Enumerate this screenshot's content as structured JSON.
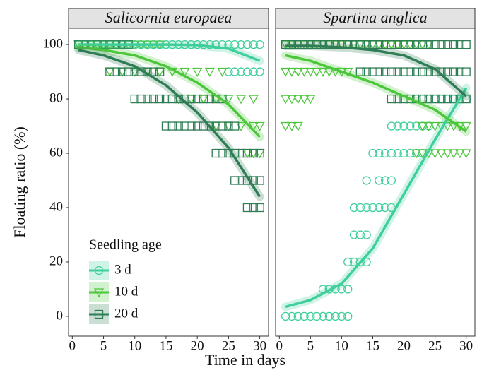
{
  "chart_data": {
    "type": "scatter",
    "x_label": "Time in days",
    "y_label": "Floating ratio (%)",
    "legend_title": "Seedling age",
    "legend": "bottom-left",
    "xlim": [
      -0.6,
      31.4
    ],
    "ylim": [
      -7.3,
      106
    ],
    "xticks": [
      0,
      5,
      10,
      15,
      20,
      25,
      30
    ],
    "yticks": [
      0,
      20,
      40,
      60,
      80,
      100
    ],
    "groups": [
      {
        "name": "3 d",
        "color": "#3fcf9b",
        "marker": "circle"
      },
      {
        "name": "10 d",
        "color": "#4cc63a",
        "marker": "triangle-down"
      },
      {
        "name": "20 d",
        "color": "#2e7d55",
        "marker": "square"
      }
    ],
    "fit_x": [
      1,
      5,
      10,
      15,
      20,
      25,
      30
    ],
    "facets": [
      {
        "title": "Salicornia europaea",
        "series": [
          {
            "x": [
              1,
              2,
              3,
              4,
              5,
              6,
              7,
              8,
              9,
              10,
              11,
              12,
              13,
              14,
              15,
              16,
              17,
              18,
              19,
              20,
              21,
              22,
              23,
              24,
              25,
              26,
              27,
              28,
              29,
              30,
              25,
              26,
              27,
              28,
              29,
              30
            ],
            "values": [
              100,
              100,
              100,
              100,
              100,
              100,
              100,
              100,
              100,
              100,
              100,
              100,
              100,
              100,
              100,
              100,
              100,
              100,
              100,
              100,
              100,
              100,
              100,
              100,
              100,
              100,
              100,
              100,
              100,
              100,
              90,
              90,
              90,
              90,
              90,
              90
            ],
            "fit": [
              100,
              100,
              100,
              100,
              99.8,
              98.5,
              94
            ]
          },
          {
            "x": [
              1,
              2,
              3,
              4,
              5,
              6,
              7,
              8,
              9,
              10,
              11,
              12,
              13,
              14,
              6,
              8,
              10,
              12,
              14,
              16,
              18,
              20,
              22,
              24,
              17,
              19,
              21,
              23,
              25,
              27,
              29,
              23,
              25,
              27,
              29,
              30,
              28,
              29,
              30
            ],
            "values": [
              100,
              100,
              100,
              100,
              100,
              100,
              100,
              100,
              100,
              100,
              100,
              100,
              100,
              100,
              90,
              90,
              90,
              90,
              90,
              90,
              90,
              90,
              90,
              90,
              80,
              80,
              80,
              80,
              80,
              80,
              80,
              70,
              70,
              70,
              70,
              70,
              60,
              60,
              60
            ],
            "fit": [
              99,
              98,
              96,
              92,
              86,
              78,
              66
            ]
          },
          {
            "x": [
              1,
              2,
              3,
              4,
              5,
              6,
              7,
              8,
              9,
              6,
              7,
              8,
              9,
              10,
              11,
              12,
              13,
              14,
              10,
              11,
              12,
              13,
              14,
              15,
              16,
              17,
              18,
              19,
              20,
              21,
              22,
              23,
              24,
              15,
              16,
              17,
              18,
              19,
              20,
              21,
              22,
              23,
              24,
              25,
              26,
              23,
              24,
              25,
              26,
              27,
              28,
              29,
              30,
              26,
              27,
              28,
              29,
              30,
              28,
              29,
              30
            ],
            "values": [
              100,
              100,
              100,
              100,
              100,
              100,
              100,
              100,
              100,
              90,
              90,
              90,
              90,
              90,
              90,
              90,
              90,
              90,
              80,
              80,
              80,
              80,
              80,
              80,
              80,
              80,
              80,
              80,
              80,
              80,
              80,
              80,
              80,
              70,
              70,
              70,
              70,
              70,
              70,
              70,
              70,
              70,
              70,
              70,
              70,
              60,
              60,
              60,
              60,
              60,
              60,
              60,
              60,
              50,
              50,
              50,
              50,
              50,
              40,
              40,
              40
            ],
            "fit": [
              98,
              96,
              92,
              85,
              75,
              62,
              44
            ]
          }
        ]
      },
      {
        "title": "Spartina anglica",
        "series": [
          {
            "x": [
              1,
              2,
              3,
              4,
              5,
              6,
              7,
              8,
              9,
              10,
              11,
              7,
              8,
              9,
              10,
              11,
              11,
              12,
              13,
              14,
              12,
              13,
              14,
              12,
              13,
              14,
              15,
              16,
              17,
              18,
              14,
              16,
              17,
              18,
              15,
              16,
              17,
              18,
              19,
              20,
              21,
              22,
              23,
              18,
              19,
              20,
              21,
              22,
              23,
              24,
              22,
              23,
              24,
              25,
              26,
              27,
              28,
              29,
              30
            ],
            "values": [
              0,
              0,
              0,
              0,
              0,
              0,
              0,
              0,
              0,
              0,
              0,
              10,
              10,
              10,
              10,
              10,
              20,
              20,
              20,
              20,
              30,
              30,
              30,
              40,
              40,
              40,
              40,
              40,
              40,
              40,
              50,
              50,
              50,
              50,
              60,
              60,
              60,
              60,
              60,
              60,
              60,
              60,
              60,
              70,
              70,
              70,
              70,
              70,
              70,
              70,
              80,
              80,
              80,
              80,
              80,
              80,
              80,
              80,
              80
            ],
            "fit": [
              3.5,
              6,
              12,
              25,
              45,
              65,
              84
            ]
          },
          {
            "x": [
              1,
              2,
              3,
              4,
              5,
              6,
              7,
              8,
              9,
              10,
              11,
              12,
              13,
              14,
              15,
              16,
              17,
              18,
              19,
              20,
              21,
              22,
              23,
              24,
              1,
              2,
              3,
              4,
              5,
              6,
              7,
              8,
              9,
              10,
              11,
              1,
              2,
              3,
              4,
              5,
              1,
              2,
              3,
              23,
              24,
              25,
              26,
              27,
              28,
              29,
              30,
              22,
              23,
              24,
              25,
              26,
              27,
              28,
              29,
              30
            ],
            "values": [
              100,
              100,
              100,
              100,
              100,
              100,
              100,
              100,
              100,
              100,
              100,
              100,
              100,
              100,
              100,
              100,
              100,
              100,
              100,
              100,
              100,
              100,
              100,
              100,
              90,
              90,
              90,
              90,
              90,
              90,
              90,
              90,
              90,
              90,
              90,
              80,
              80,
              80,
              80,
              80,
              70,
              70,
              70,
              70,
              70,
              70,
              70,
              70,
              70,
              70,
              70,
              60,
              60,
              60,
              60,
              60,
              60,
              60,
              60,
              60
            ],
            "fit": [
              96,
              94,
              90,
              86,
              81,
              76,
              68
            ]
          },
          {
            "x": [
              1,
              2,
              3,
              4,
              5,
              6,
              7,
              8,
              9,
              10,
              11,
              12,
              13,
              14,
              15,
              16,
              17,
              18,
              19,
              20,
              21,
              22,
              23,
              24,
              25,
              26,
              27,
              28,
              29,
              30,
              13,
              14,
              15,
              16,
              17,
              18,
              19,
              20,
              21,
              22,
              23,
              24,
              25,
              26,
              27,
              28,
              29,
              30,
              18,
              19,
              20,
              21,
              22,
              23,
              24,
              25,
              26,
              27,
              28,
              29,
              30
            ],
            "values": [
              100,
              100,
              100,
              100,
              100,
              100,
              100,
              100,
              100,
              100,
              100,
              100,
              100,
              100,
              100,
              100,
              100,
              100,
              100,
              100,
              100,
              100,
              100,
              100,
              100,
              100,
              100,
              100,
              100,
              100,
              90,
              90,
              90,
              90,
              90,
              90,
              90,
              90,
              90,
              90,
              90,
              90,
              90,
              90,
              90,
              90,
              90,
              90,
              80,
              80,
              80,
              80,
              80,
              80,
              80,
              80,
              80,
              80,
              80,
              80,
              80
            ],
            "fit": [
              99.5,
              99.5,
              99,
              98,
              96,
              91,
              81
            ]
          }
        ]
      }
    ]
  }
}
